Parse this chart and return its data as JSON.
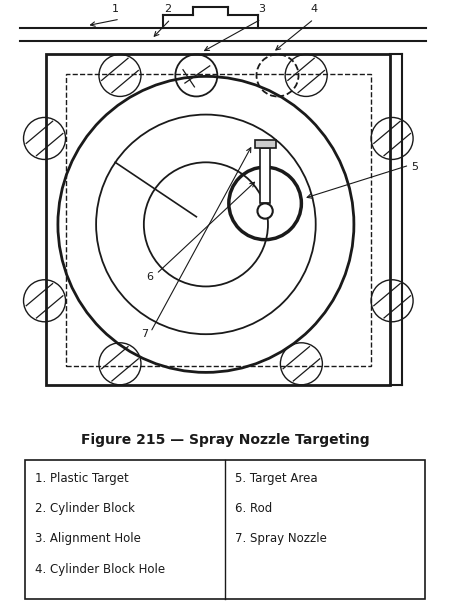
{
  "title": "Figure 215 — Spray Nozzle Targeting",
  "title_fontsize": 10,
  "title_fontweight": "bold",
  "bg_color": "#ffffff",
  "line_color": "#1a1a1a",
  "legend_items_left": [
    "1. Plastic Target",
    "2. Cylinder Block",
    "3. Alignment Hole",
    "4. Cylinder Block Hole"
  ],
  "legend_items_right": [
    "5. Target Area",
    "6. Rod",
    "7. Spray Nozzle"
  ],
  "figure_width": 4.5,
  "figure_height": 6.07
}
